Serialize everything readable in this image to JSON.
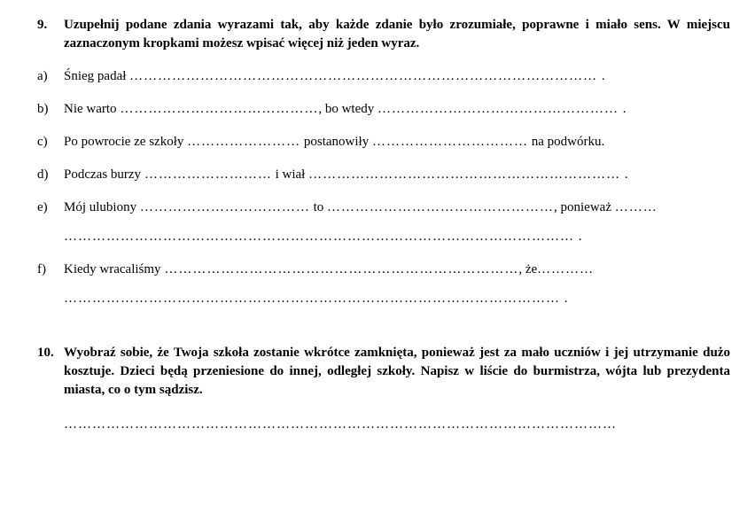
{
  "q9": {
    "number": "9.",
    "instruction": "Uzupełnij podane zdania wyrazami tak, aby każde zdanie było zrozumiałe, poprawne i miało sens. W miejscu zaznaczonym kropkami możesz wpisać więcej niż jeden wyraz.",
    "a": {
      "letter": "a)",
      "t1": "Śnieg padał ",
      "d1": "……………………………………………………………………………………… ."
    },
    "b": {
      "letter": "b)",
      "t1": "Nie warto ",
      "d1": "……………………………………",
      "t2": ", bo wtedy ",
      "d2": "…………………………………………… ."
    },
    "c": {
      "letter": "c)",
      "t1": "Po powrocie ze szkoły ",
      "d1": "……………………",
      "t2": " postanowiły ",
      "d2": "……………………………",
      "t3": " na podwórku."
    },
    "d": {
      "letter": "d)",
      "t1": "Podczas burzy ",
      "d1": "………………………",
      "t2": " i wiał ",
      "d2": "………………………………………………………… ."
    },
    "e": {
      "letter": "e)",
      "t1": "Mój ulubiony ",
      "d1": "………………………………",
      "t2": " to ",
      "d2": "…………………………………………",
      "t3": ", ponieważ ",
      "d3": "………",
      "cont": "……………………………………………………………………………………………… ."
    },
    "f": {
      "letter": "f)",
      "t1": "Kiedy wracaliśmy ",
      "d1": "…………………………………………………………………",
      "t2": ", że",
      "d2": "…………",
      "cont": "…………………………………………………………………………………………… ."
    }
  },
  "q10": {
    "number": "10.",
    "instruction": "Wyobraź sobie, że Twoja szkoła zostanie wkrótce zamknięta, ponieważ jest za mało uczniów i jej utrzymanie dużo kosztuje. Dzieci będą przeniesione do innej, odległej szkoły. Napisz w liście do burmistrza, wójta lub prezydenta miasta, co o tym sądzisz.",
    "blank": "………………………………………………………………………………………………………"
  }
}
